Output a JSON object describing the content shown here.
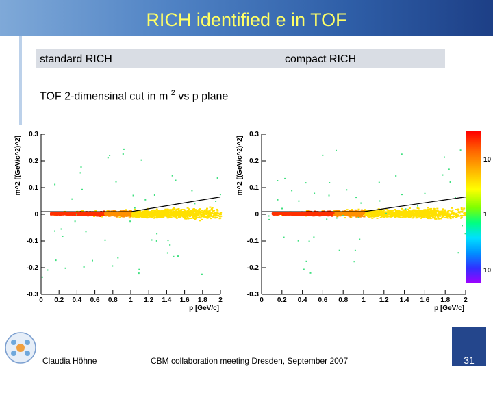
{
  "title": "RICH identified e in TOF",
  "labels": {
    "left": "standard RICH",
    "right": "compact RICH"
  },
  "subtitle": {
    "text": "TOF 2-dimensinal cut in m",
    "sup": "2",
    "suffix": " vs p plane"
  },
  "footer": {
    "author": "Claudia Höhne",
    "event": "CBM collaboration meeting Dresden, September 2007",
    "page": "31"
  },
  "colors": {
    "accent": "#ffff66",
    "header_start": "#7fa9d8",
    "header_end": "#1d3f86",
    "page_bg": "#24468c"
  },
  "colorbar": {
    "labels": [
      "10",
      "1",
      "10"
    ]
  },
  "chart_data": [
    {
      "type": "heatmap",
      "name": "standard RICH",
      "xlabel": "p [GeV/c]",
      "ylabel": "m^2 [(GeV/c^2)^2]",
      "xlim": [
        0,
        2
      ],
      "ylim": [
        -0.3,
        0.3
      ],
      "xticks": [
        "0",
        "0.2",
        "0.4",
        "0.6",
        "0.8",
        "1",
        "1.2",
        "1.4",
        "1.6",
        "1.8",
        "2"
      ],
      "yticks": [
        "0.3",
        "0.2",
        "0.1",
        "0",
        "-0.1",
        "-0.2",
        "-0.3"
      ],
      "cut_line": [
        [
          0,
          0.01
        ],
        [
          1,
          0.01
        ],
        [
          2,
          0.065
        ]
      ]
    },
    {
      "type": "heatmap",
      "name": "compact RICH",
      "xlabel": "p [GeV/c]",
      "ylabel": "m^2 [(GeV/c^2)^2]",
      "xlim": [
        0,
        2
      ],
      "ylim": [
        -0.3,
        0.3
      ],
      "xticks": [
        "0",
        "0.2",
        "0.4",
        "0.6",
        "0.8",
        "1",
        "1.2",
        "1.4",
        "1.6",
        "1.8",
        "2"
      ],
      "yticks": [
        "0.3",
        "0.2",
        "0.1",
        "0",
        "-0.1",
        "-0.2",
        "-0.3"
      ],
      "cut_line": [
        [
          0,
          0.01
        ],
        [
          1,
          0.01
        ],
        [
          2,
          0.065
        ]
      ]
    }
  ]
}
